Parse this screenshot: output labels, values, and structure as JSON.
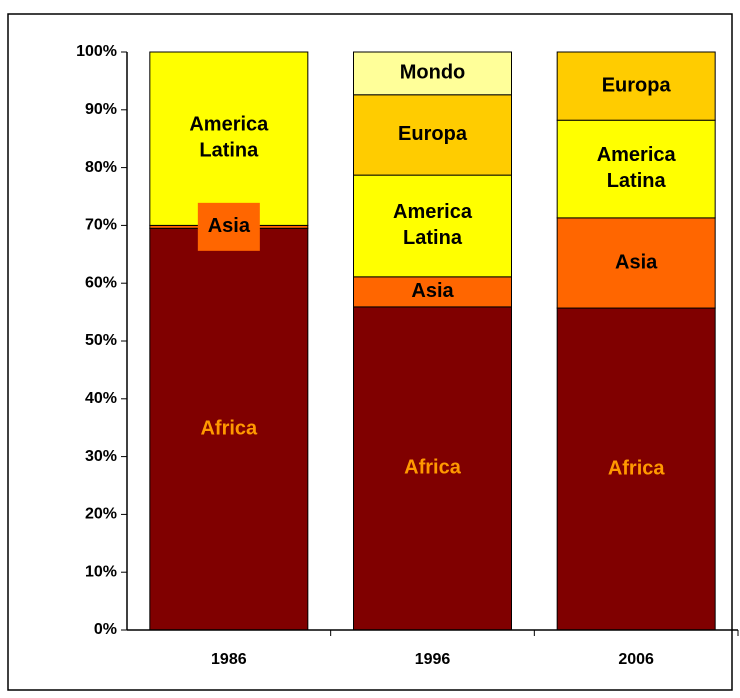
{
  "chart_data": {
    "type": "stacked_bar",
    "categories": [
      "1986",
      "1996",
      "2006"
    ],
    "series": [
      {
        "name": "Africa",
        "color": "#800000",
        "label_color": "#ff9900",
        "values": [
          69.5,
          55.9,
          55.7
        ]
      },
      {
        "name": "Asia",
        "color": "#ff6600",
        "label_color": "#000000",
        "values": [
          0.5,
          5.2,
          15.6
        ]
      },
      {
        "name": "America Latina",
        "color": "#ffff00",
        "label_color": "#000000",
        "values": [
          30,
          17.6,
          16.9
        ]
      },
      {
        "name": "Europa",
        "color": "#ffcc00",
        "label_color": "#000000",
        "values": [
          0,
          13.9,
          11.8
        ]
      },
      {
        "name": "Mondo",
        "color": "#ffff99",
        "label_color": "#000000",
        "values": [
          0,
          7.4,
          0
        ]
      }
    ],
    "ylim": [
      0,
      100
    ],
    "yticks": [
      {
        "value": 0,
        "label": "0%"
      },
      {
        "value": 10,
        "label": "10%"
      },
      {
        "value": 20,
        "label": "20%"
      },
      {
        "value": 30,
        "label": "30%"
      },
      {
        "value": 40,
        "label": "40%"
      },
      {
        "value": 50,
        "label": "50%"
      },
      {
        "value": 60,
        "label": "60%"
      },
      {
        "value": 70,
        "label": "70%"
      },
      {
        "value": 80,
        "label": "80%"
      },
      {
        "value": 90,
        "label": "90%"
      },
      {
        "value": 100,
        "label": "100%"
      }
    ],
    "grid": false
  }
}
